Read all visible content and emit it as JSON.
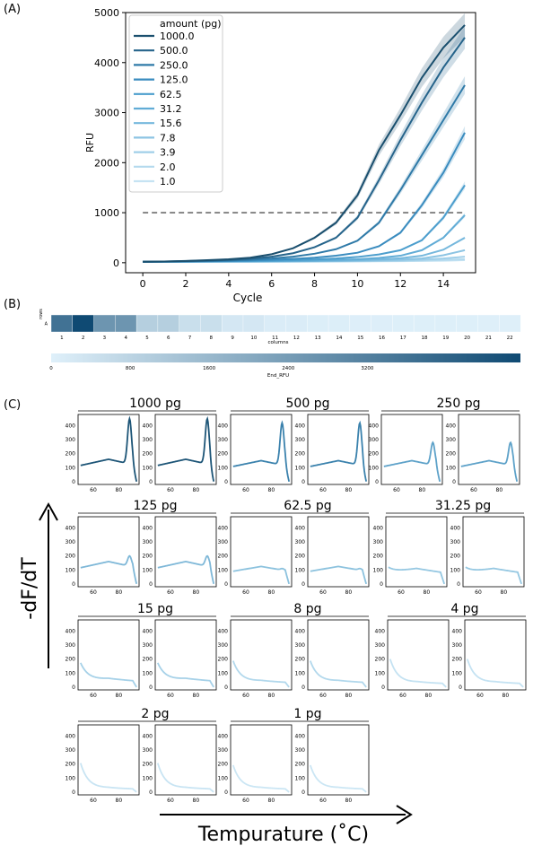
{
  "chart_data": [
    {
      "panel_label": "(A)",
      "type": "line",
      "xlabel": "Cycle",
      "ylabel": "RFU",
      "xlim": [
        -0.8,
        15.5
      ],
      "ylim": [
        -200,
        5000
      ],
      "x_ticks": [
        0,
        2,
        4,
        6,
        8,
        10,
        12,
        14
      ],
      "y_ticks": [
        0,
        1000,
        2000,
        3000,
        4000,
        5000
      ],
      "grid": false,
      "legend": {
        "title": "amount (pg)",
        "placement": "top-left"
      },
      "threshold": {
        "value": 1000,
        "style": "dashed",
        "color": "#808080"
      },
      "x": [
        0,
        1,
        2,
        3,
        4,
        5,
        6,
        7,
        8,
        9,
        10,
        11,
        12,
        13,
        14,
        15
      ],
      "series": [
        {
          "name": "1000.0",
          "color": "#1a4f6e",
          "values": [
            20,
            25,
            35,
            50,
            70,
            100,
            170,
            290,
            500,
            800,
            1350,
            2250,
            2950,
            3700,
            4300,
            4750
          ]
        },
        {
          "name": "500.0",
          "color": "#26648b",
          "values": [
            20,
            24,
            32,
            42,
            55,
            80,
            120,
            190,
            310,
            500,
            900,
            1650,
            2450,
            3200,
            3900,
            4500
          ]
        },
        {
          "name": "250.0",
          "color": "#2f7aa8",
          "values": [
            20,
            22,
            28,
            35,
            45,
            60,
            85,
            120,
            180,
            270,
            440,
            800,
            1450,
            2150,
            2850,
            3550
          ]
        },
        {
          "name": "125.0",
          "color": "#3a8cbf",
          "values": [
            20,
            21,
            25,
            30,
            37,
            46,
            58,
            75,
            100,
            140,
            200,
            330,
            600,
            1150,
            1800,
            2600
          ]
        },
        {
          "name": "62.5",
          "color": "#4c9ecd",
          "values": [
            20,
            21,
            23,
            26,
            30,
            35,
            42,
            52,
            65,
            85,
            115,
            165,
            250,
            450,
            900,
            1550
          ]
        },
        {
          "name": "31.2",
          "color": "#61acd6",
          "values": [
            20,
            20,
            22,
            24,
            26,
            29,
            33,
            38,
            45,
            55,
            70,
            95,
            140,
            250,
            500,
            950
          ]
        },
        {
          "name": "15.6",
          "color": "#76b8dd",
          "values": [
            20,
            20,
            21,
            22,
            24,
            26,
            28,
            31,
            36,
            42,
            50,
            65,
            90,
            140,
            260,
            500
          ]
        },
        {
          "name": "7.8",
          "color": "#8cc4e3",
          "values": [
            20,
            20,
            21,
            21,
            22,
            23,
            25,
            27,
            30,
            34,
            40,
            48,
            60,
            85,
            150,
            250
          ]
        },
        {
          "name": "3.9",
          "color": "#a0cfe9",
          "values": [
            20,
            20,
            20,
            21,
            21,
            22,
            23,
            24,
            26,
            29,
            33,
            38,
            45,
            60,
            85,
            120
          ]
        },
        {
          "name": "2.0",
          "color": "#b4daee",
          "values": [
            20,
            20,
            20,
            20,
            21,
            21,
            22,
            23,
            24,
            26,
            28,
            32,
            36,
            45,
            55,
            70
          ]
        },
        {
          "name": "1.0",
          "color": "#c6e3f3",
          "values": [
            20,
            20,
            20,
            20,
            20,
            21,
            21,
            22,
            23,
            24,
            26,
            28,
            31,
            35,
            40,
            50
          ]
        }
      ]
    },
    {
      "panel_label": "(B)",
      "type": "heatmap",
      "row_axis_label": "rows",
      "row_labels": [
        "A"
      ],
      "column_axis_label": "columns",
      "column_labels": [
        "1",
        "2",
        "3",
        "4",
        "5",
        "6",
        "7",
        "8",
        "9",
        "10",
        "11",
        "12",
        "13",
        "14",
        "15",
        "16",
        "17",
        "18",
        "19",
        "20",
        "21",
        "22"
      ],
      "values": [
        [
          3600,
          4750,
          2600,
          2600,
          950,
          950,
          500,
          500,
          250,
          250,
          120,
          120,
          70,
          70,
          50,
          50,
          40,
          40,
          35,
          35,
          30,
          30
        ]
      ],
      "colorbar": {
        "label": "End_RFU",
        "ticks": [
          0,
          800,
          1600,
          2400,
          3200
        ],
        "range": [
          0,
          4750
        ],
        "color_low": "#dff0fa",
        "color_high": "#0f4a73"
      }
    },
    {
      "panel_label": "(C)",
      "type": "line",
      "ylabel": "-dF/dT",
      "xlabel": "Tempurature (˚C)",
      "xlim": [
        48,
        96
      ],
      "ylim": [
        -20,
        480
      ],
      "x_ticks": [
        60,
        80
      ],
      "y_ticks": [
        0,
        100,
        200,
        300,
        400
      ],
      "groups": [
        {
          "title": "1000 pg",
          "color": "#1d5577",
          "peak": 450,
          "plateau": 160,
          "start": 95,
          "replicates": 2
        },
        {
          "title": "500 pg",
          "color": "#3b82ad",
          "peak": 420,
          "plateau": 150,
          "start": 90,
          "replicates": 2
        },
        {
          "title": "250 pg",
          "color": "#5ea2c9",
          "peak": 280,
          "plateau": 150,
          "start": 75,
          "replicates": 2
        },
        {
          "title": "125 pg",
          "color": "#7fb8d8",
          "peak": 200,
          "plateau": 160,
          "start": 95,
          "replicates": 2
        },
        {
          "title": "62.5 pg",
          "color": "#8cc2de",
          "peak": 110,
          "plateau": 125,
          "start": 110,
          "replicates": 2
        },
        {
          "title": "31.25 pg",
          "color": "#96c8e2",
          "peak": 60,
          "plateau": 110,
          "start": 150,
          "replicates": 2
        },
        {
          "title": "15 pg",
          "color": "#a6d1e8",
          "peak": 35,
          "plateau": 60,
          "start": 190,
          "replicates": 2
        },
        {
          "title": "8 pg",
          "color": "#b2d8ec",
          "peak": 20,
          "plateau": 45,
          "start": 200,
          "replicates": 2
        },
        {
          "title": "4 pg",
          "color": "#c4e2f2",
          "peak": 12,
          "plateau": 35,
          "start": 210,
          "replicates": 2
        },
        {
          "title": "2 pg",
          "color": "#c8e4f3",
          "peak": 8,
          "plateau": 30,
          "start": 215,
          "replicates": 2
        },
        {
          "title": "1 pg",
          "color": "#cbe6f4",
          "peak": 6,
          "plateau": 30,
          "start": 200,
          "replicates": 2
        }
      ]
    }
  ]
}
